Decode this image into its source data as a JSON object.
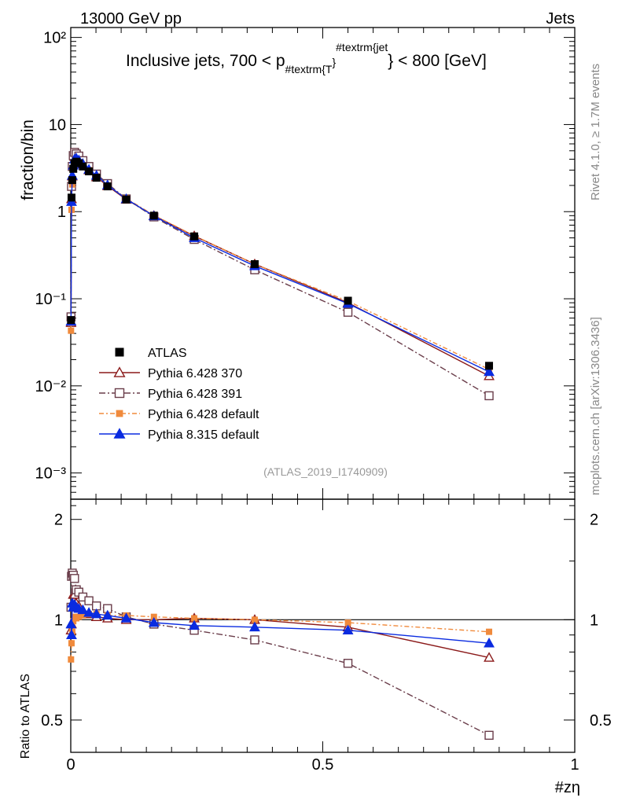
{
  "header": {
    "left": "13000 GeV pp",
    "right": "Jets"
  },
  "side_labels": {
    "rivet": "Rivet 4.1.0, ≥ 1.7M events",
    "mcplots": "mcplots.cern.ch [arXiv:1306.3436]"
  },
  "chart_data": {
    "type": "line",
    "title": "Inclusive jets, 700 < p",
    "title_sub": "#textrm{T",
    "title_sup": "#textrm{jet",
    "title_suffix": "} < 800 [GeV]",
    "watermark": "(ATLAS_2019_I1740909)",
    "xlabel": "#zη",
    "ylabel": "fraction/bin",
    "ratio_ylabel": "Ratio to ATLAS",
    "xlim": [
      0,
      1
    ],
    "ylim": [
      0.0005,
      130
    ],
    "ratio_ylim": [
      0.4,
      2.3
    ],
    "x_ticks": [
      "0",
      "0.5",
      "1"
    ],
    "y_ticks": [
      "10⁻³",
      "10⁻²",
      "10⁻¹",
      "1",
      "10",
      "10²"
    ],
    "ratio_ticks": [
      "0.5",
      "1",
      "2"
    ],
    "x": [
      0.0005,
      0.0015,
      0.003,
      0.005,
      0.0075,
      0.011,
      0.016,
      0.024,
      0.036,
      0.051,
      0.073,
      0.11,
      0.165,
      0.245,
      0.365,
      0.55,
      0.83
    ],
    "series": [
      {
        "name": "ATLAS",
        "style": "data",
        "values": [
          0.057,
          1.45,
          2.3,
          3.1,
          3.6,
          3.75,
          3.6,
          3.3,
          2.9,
          2.45,
          1.95,
          1.38,
          0.9,
          0.52,
          0.25,
          0.095,
          0.017
        ],
        "ratio": [
          1,
          1,
          1,
          1,
          1,
          1,
          1,
          1,
          1,
          1,
          1,
          1,
          1,
          1,
          1,
          1,
          1
        ]
      },
      {
        "name": "Pythia 6.428 370",
        "style": "triangle-open",
        "color": "#8b1a1a",
        "values": [
          0.053,
          1.4,
          2.55,
          3.7,
          4.3,
          4.2,
          3.95,
          3.5,
          3.0,
          2.5,
          1.97,
          1.38,
          0.9,
          0.525,
          0.25,
          0.09,
          0.013
        ],
        "ratio": [
          0.93,
          0.97,
          1.11,
          1.19,
          1.19,
          1.12,
          1.1,
          1.06,
          1.04,
          1.02,
          1.01,
          1.0,
          1.0,
          1.01,
          1.0,
          0.95,
          0.77
        ]
      },
      {
        "name": "Pythia 6.428 391",
        "style": "square-open",
        "color": "#6a3d4a",
        "values": [
          0.062,
          1.95,
          3.3,
          4.4,
          4.8,
          4.6,
          4.35,
          3.85,
          3.3,
          2.7,
          2.1,
          1.4,
          0.87,
          0.48,
          0.215,
          0.07,
          0.0077
        ],
        "ratio": [
          1.09,
          1.35,
          1.38,
          1.36,
          1.33,
          1.23,
          1.21,
          1.17,
          1.14,
          1.1,
          1.08,
          1.02,
          0.97,
          0.93,
          0.87,
          0.74,
          0.45
        ]
      },
      {
        "name": "Pythia 6.428 default",
        "style": "square-filled",
        "color": "#f08a3c",
        "values": [
          0.043,
          1.05,
          2.05,
          3.05,
          3.7,
          3.8,
          3.65,
          3.4,
          3.0,
          2.55,
          2.0,
          1.42,
          0.91,
          0.53,
          0.25,
          0.094,
          0.0155
        ],
        "ratio": [
          0.76,
          0.85,
          0.92,
          0.99,
          1.02,
          1.01,
          1.02,
          1.03,
          1.04,
          1.04,
          1.03,
          1.03,
          1.02,
          1.01,
          1.0,
          0.98,
          0.92
        ]
      },
      {
        "name": "Pythia 8.315 default",
        "style": "triangle-filled",
        "color": "#0a2be0",
        "values": [
          0.055,
          1.3,
          2.6,
          3.4,
          4.0,
          4.1,
          3.9,
          3.55,
          3.05,
          2.6,
          2.02,
          1.4,
          0.89,
          0.5,
          0.238,
          0.088,
          0.0145
        ],
        "ratio": [
          0.97,
          0.9,
          1.12,
          1.09,
          1.11,
          1.09,
          1.08,
          1.07,
          1.05,
          1.04,
          1.03,
          1.01,
          0.98,
          0.96,
          0.95,
          0.93,
          0.85
        ]
      }
    ]
  }
}
